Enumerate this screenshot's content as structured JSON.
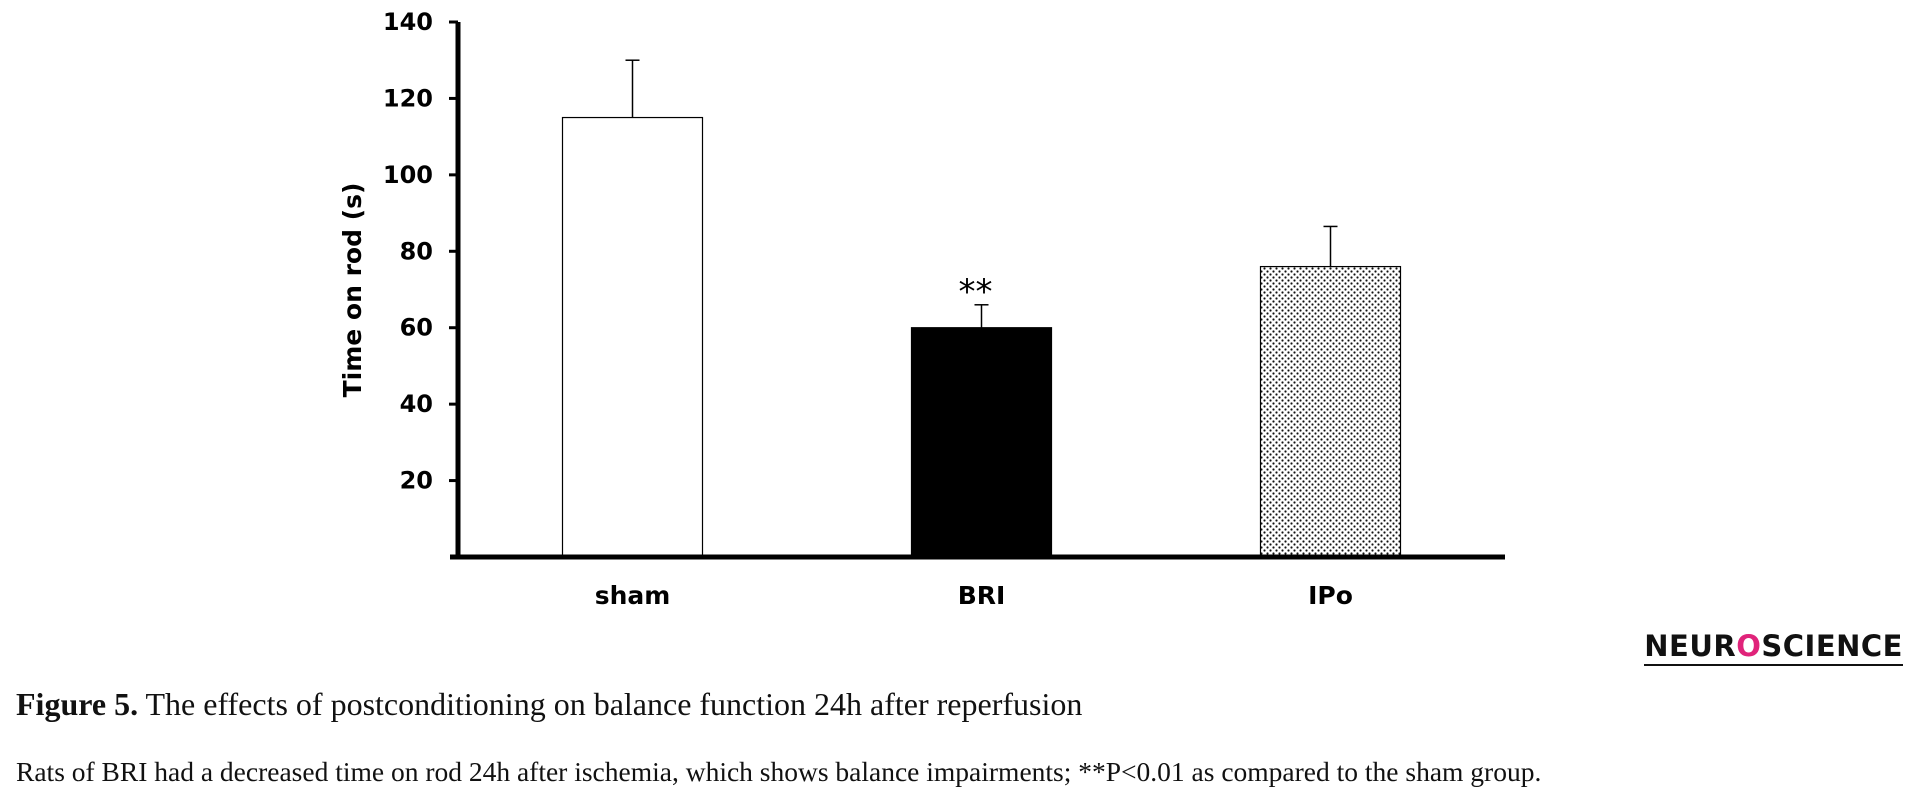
{
  "chart_data": {
    "type": "bar",
    "title": "",
    "xlabel": "",
    "ylabel": "Time on rod (s)",
    "ylim": [
      0,
      140
    ],
    "yticks": [
      20,
      40,
      60,
      80,
      100,
      120,
      140
    ],
    "categories": [
      "sham",
      "BRI",
      "IPo"
    ],
    "values": [
      115,
      60,
      76
    ],
    "error_upper": [
      15,
      6,
      10.5
    ],
    "fills": [
      "white",
      "black",
      "dotted"
    ],
    "annotations": [
      {
        "category": "BRI",
        "text": "**"
      }
    ],
    "grid": false,
    "legend": "none"
  },
  "logo": {
    "pre": "NEUR",
    "mark": "O",
    "post": "SCIENCE"
  },
  "caption": {
    "label": "Figure 5.",
    "title": "The effects of postconditioning on balance function 24h after reperfusion",
    "text": "Rats of BRI had a decreased time on rod 24h after ischemia, which shows balance impairments; **P<0.01 as compared to the sham group."
  }
}
